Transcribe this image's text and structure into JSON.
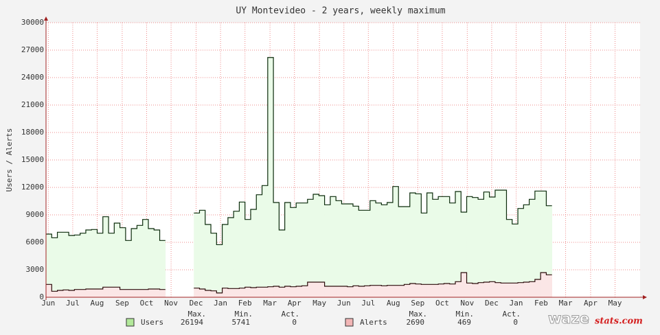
{
  "chart_data": {
    "type": "line",
    "title": "UY Montevideo - 2 years, weekly maximum",
    "y_label": "Users / Alerts",
    "x": [
      0,
      1,
      2,
      3,
      4,
      5,
      6,
      7,
      8,
      9,
      10,
      11,
      12,
      13,
      14,
      15,
      16,
      17,
      18,
      19,
      20,
      21,
      22,
      23,
      24,
      25,
      26,
      27,
      28,
      29,
      30,
      31,
      32,
      33,
      34,
      35,
      36,
      37,
      38,
      39,
      40,
      41,
      42,
      43,
      44,
      45,
      46,
      47,
      48,
      49,
      50,
      51,
      52,
      53,
      54,
      55,
      56,
      57,
      58,
      59,
      60,
      61,
      62,
      63,
      64,
      65,
      66,
      67,
      68,
      69,
      70,
      71,
      72,
      73,
      74,
      75,
      76,
      77,
      78,
      79,
      80,
      81,
      82,
      83,
      84,
      85,
      86,
      87,
      88
    ],
    "series": [
      {
        "name": "Users",
        "color": "#eafbe8",
        "line_color": "#0a2a0a",
        "legend_color": "#b2e89a",
        "values": [
          6900,
          6500,
          7100,
          7100,
          6750,
          6800,
          7000,
          7350,
          7400,
          7000,
          8800,
          7000,
          8100,
          7600,
          6200,
          7500,
          7850,
          8500,
          7500,
          7350,
          6200,
          null,
          null,
          null,
          null,
          null,
          9200,
          9500,
          7950,
          7000,
          5741,
          7950,
          8700,
          9400,
          10400,
          8500,
          9600,
          11200,
          12200,
          26194,
          10350,
          7350,
          10350,
          9800,
          10300,
          10300,
          10700,
          11250,
          11100,
          10100,
          11000,
          10550,
          10200,
          10200,
          9950,
          9500,
          9500,
          10550,
          10300,
          10100,
          10350,
          12100,
          9900,
          9900,
          11400,
          11300,
          9200,
          11400,
          10700,
          11000,
          11000,
          10300,
          11550,
          9300,
          11000,
          10900,
          10700,
          11500,
          10950,
          11700,
          11700,
          8500,
          8000,
          9700,
          10100,
          10700,
          11600,
          11600,
          10000
        ],
        "stats": [
          26194,
          5741,
          0
        ]
      },
      {
        "name": "Alerts",
        "color": "#fbe6e6",
        "line_color": "#2a0a0a",
        "legend_color": "#f2b6b6",
        "values": [
          1400,
          650,
          750,
          800,
          750,
          850,
          850,
          900,
          900,
          900,
          1100,
          1100,
          1100,
          850,
          850,
          850,
          850,
          850,
          900,
          900,
          850,
          null,
          null,
          null,
          null,
          null,
          1000,
          900,
          750,
          700,
          469,
          1000,
          950,
          950,
          1000,
          1100,
          1050,
          1100,
          1100,
          1150,
          1200,
          1100,
          1200,
          1150,
          1200,
          1250,
          1650,
          1650,
          1650,
          1200,
          1200,
          1200,
          1200,
          1150,
          1250,
          1200,
          1250,
          1300,
          1300,
          1250,
          1300,
          1300,
          1300,
          1400,
          1500,
          1450,
          1400,
          1400,
          1400,
          1450,
          1500,
          1450,
          1700,
          2690,
          1550,
          1500,
          1600,
          1650,
          1700,
          1600,
          1550,
          1550,
          1550,
          1600,
          1650,
          1700,
          1950,
          2690,
          2450
        ],
        "stats": [
          2690,
          469,
          0
        ]
      }
    ],
    "stat_headers": [
      "Max.",
      "Min.",
      "Act."
    ],
    "xlim": [
      0,
      104.5
    ],
    "xticks": [
      {
        "value": 0.4,
        "label": "Jun"
      },
      {
        "value": 4.7,
        "label": "Jul"
      },
      {
        "value": 9.0,
        "label": "Aug"
      },
      {
        "value": 13.4,
        "label": "Sep"
      },
      {
        "value": 17.7,
        "label": "Oct"
      },
      {
        "value": 22.0,
        "label": "Nov"
      },
      {
        "value": 26.4,
        "label": "Dec"
      },
      {
        "value": 30.7,
        "label": "Jan"
      },
      {
        "value": 35.0,
        "label": "Feb"
      },
      {
        "value": 39.4,
        "label": "Mar"
      },
      {
        "value": 43.7,
        "label": "Apr"
      },
      {
        "value": 48.1,
        "label": "May"
      },
      {
        "value": 52.4,
        "label": "Jun"
      },
      {
        "value": 56.7,
        "label": "Jul"
      },
      {
        "value": 61.1,
        "label": "Aug"
      },
      {
        "value": 65.4,
        "label": "Sep"
      },
      {
        "value": 69.7,
        "label": "Oct"
      },
      {
        "value": 74.1,
        "label": "Nov"
      },
      {
        "value": 78.4,
        "label": "Dec"
      },
      {
        "value": 82.7,
        "label": "Jan"
      },
      {
        "value": 87.1,
        "label": "Feb"
      },
      {
        "value": 91.4,
        "label": "Mar"
      },
      {
        "value": 95.8,
        "label": "Apr"
      },
      {
        "value": 100.1,
        "label": "May"
      }
    ],
    "ylim": [
      0,
      30000
    ],
    "yticks": [
      0,
      3000,
      6000,
      9000,
      12000,
      15000,
      18000,
      21000,
      24000,
      27000,
      30000
    ],
    "grid": true,
    "watermark": [
      "waze",
      "stats.com"
    ]
  }
}
